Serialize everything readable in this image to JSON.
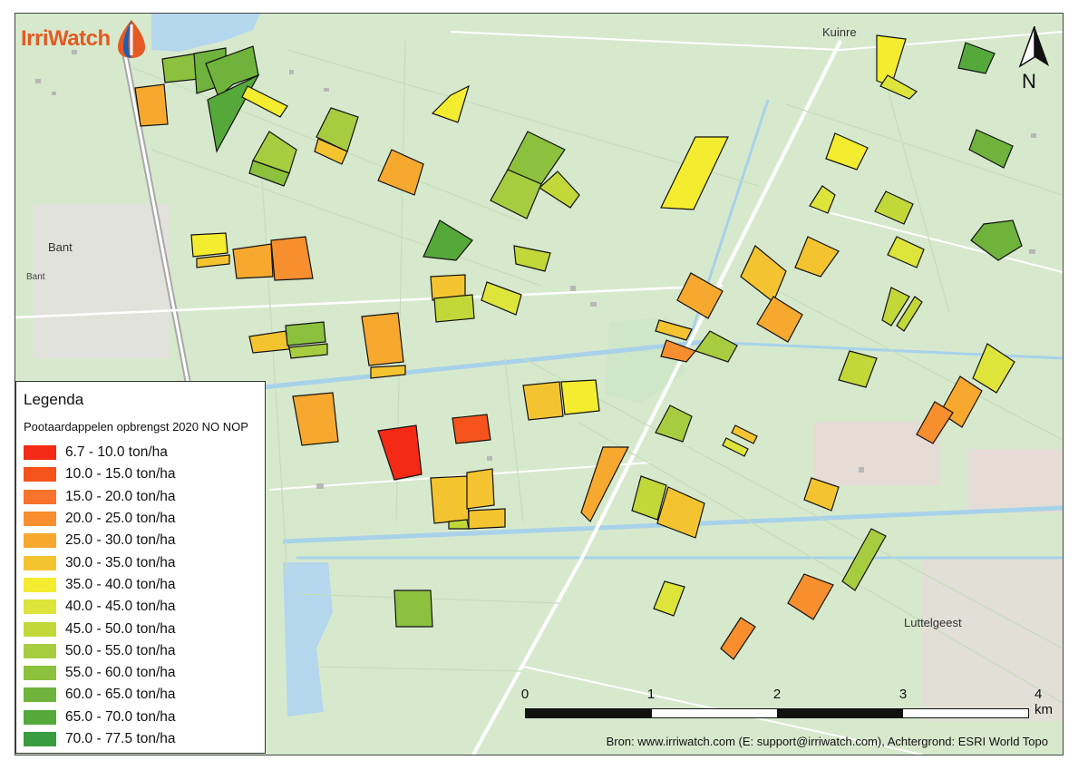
{
  "header": {
    "logo_text": "IrriWatch",
    "logo_icon": "irriwatch-droplet-logo",
    "logo_color": "#e35a22"
  },
  "places": {
    "kuinre": "Kuinre",
    "bant_main": "Bant",
    "bant_small": "Bant",
    "luttelgeest": "Luttelgeest"
  },
  "north_arrow": {
    "letter": "N",
    "icon": "north-arrow-icon"
  },
  "legend": {
    "title": "Legenda",
    "subtitle": "Pootaardappelen opbrengst 2020 NO NOP",
    "classes": [
      {
        "label": "6.7 - 10.0 ton/ha",
        "color": "#f42a16"
      },
      {
        "label": "10.0 - 15.0 ton/ha",
        "color": "#f6521c"
      },
      {
        "label": "15.0 - 20.0 ton/ha",
        "color": "#f7722a"
      },
      {
        "label": "20.0 - 25.0 ton/ha",
        "color": "#f78f2e"
      },
      {
        "label": "25.0 - 30.0 ton/ha",
        "color": "#f6a92e"
      },
      {
        "label": "30.0 - 35.0 ton/ha",
        "color": "#f4c430"
      },
      {
        "label": "35.0 - 40.0 ton/ha",
        "color": "#f4ec2e"
      },
      {
        "label": "40.0 - 45.0 ton/ha",
        "color": "#dde43a"
      },
      {
        "label": "45.0 - 50.0 ton/ha",
        "color": "#c2d838"
      },
      {
        "label": "50.0 - 55.0 ton/ha",
        "color": "#a6cd40"
      },
      {
        "label": "55.0 - 60.0 ton/ha",
        "color": "#8cc13e"
      },
      {
        "label": "60.0 - 65.0 ton/ha",
        "color": "#6fb33c"
      },
      {
        "label": "65.0 - 70.0 ton/ha",
        "color": "#55a83a"
      },
      {
        "label": "70.0 - 77.5 ton/ha",
        "color": "#399c3e"
      }
    ]
  },
  "scale": {
    "unit": "km",
    "ticks": [
      "0",
      "1",
      "2",
      "3",
      "4 km"
    ]
  },
  "source": "Bron: www.irriwatch.com (E: support@irriwatch.com), Achtergrond: ESRI World Topo"
}
